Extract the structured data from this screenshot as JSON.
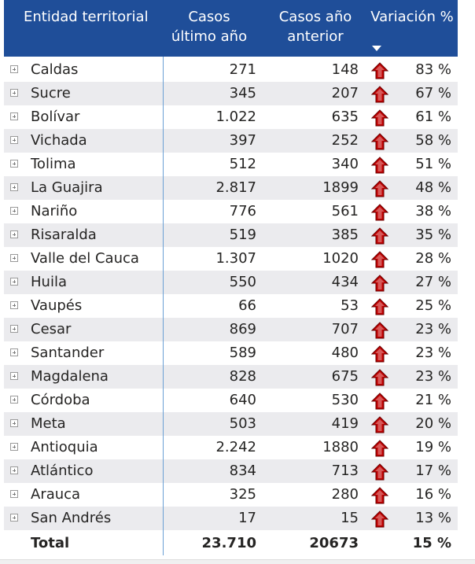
{
  "header": {
    "entidad": "Entidad territorial",
    "casos_line1": "Casos",
    "casos_line2": "último año",
    "anterior_line1": "Casos año",
    "anterior_line2": "anterior",
    "variacion": "Variación %"
  },
  "rows": [
    {
      "name": "Caldas",
      "cur": "271",
      "prev": "148",
      "var": "83 %"
    },
    {
      "name": "Sucre",
      "cur": "345",
      "prev": "207",
      "var": "67 %"
    },
    {
      "name": "Bolívar",
      "cur": "1.022",
      "prev": "635",
      "var": "61 %"
    },
    {
      "name": "Vichada",
      "cur": "397",
      "prev": "252",
      "var": "58 %"
    },
    {
      "name": "Tolima",
      "cur": "512",
      "prev": "340",
      "var": "51 %"
    },
    {
      "name": "La Guajira",
      "cur": "2.817",
      "prev": "1899",
      "var": "48 %"
    },
    {
      "name": "Nariño",
      "cur": "776",
      "prev": "561",
      "var": "38 %"
    },
    {
      "name": "Risaralda",
      "cur": "519",
      "prev": "385",
      "var": "35 %"
    },
    {
      "name": "Valle del Cauca",
      "cur": "1.307",
      "prev": "1020",
      "var": "28 %"
    },
    {
      "name": "Huila",
      "cur": "550",
      "prev": "434",
      "var": "27 %"
    },
    {
      "name": "Vaupés",
      "cur": "66",
      "prev": "53",
      "var": "25 %"
    },
    {
      "name": "Cesar",
      "cur": "869",
      "prev": "707",
      "var": "23 %"
    },
    {
      "name": "Santander",
      "cur": "589",
      "prev": "480",
      "var": "23 %"
    },
    {
      "name": "Magdalena",
      "cur": "828",
      "prev": "675",
      "var": "23 %"
    },
    {
      "name": "Córdoba",
      "cur": "640",
      "prev": "530",
      "var": "21 %"
    },
    {
      "name": "Meta",
      "cur": "503",
      "prev": "419",
      "var": "20 %"
    },
    {
      "name": "Antioquia",
      "cur": "2.242",
      "prev": "1880",
      "var": "19 %"
    },
    {
      "name": "Atlántico",
      "cur": "834",
      "prev": "713",
      "var": "17 %"
    },
    {
      "name": "Arauca",
      "cur": "325",
      "prev": "280",
      "var": "16 %"
    },
    {
      "name": "San Andrés",
      "cur": "17",
      "prev": "15",
      "var": "13 %"
    }
  ],
  "total": {
    "label": "Total",
    "cur": "23.710",
    "prev": "20673",
    "var": "15 %"
  },
  "colors": {
    "header_bg": "#1f4e99",
    "arrow": "#c00000",
    "row_alt": "#ebebee"
  },
  "icons": {
    "expand": "expand-plus-icon",
    "trend": "up-arrow-icon",
    "sort": "sort-descending-icon"
  }
}
